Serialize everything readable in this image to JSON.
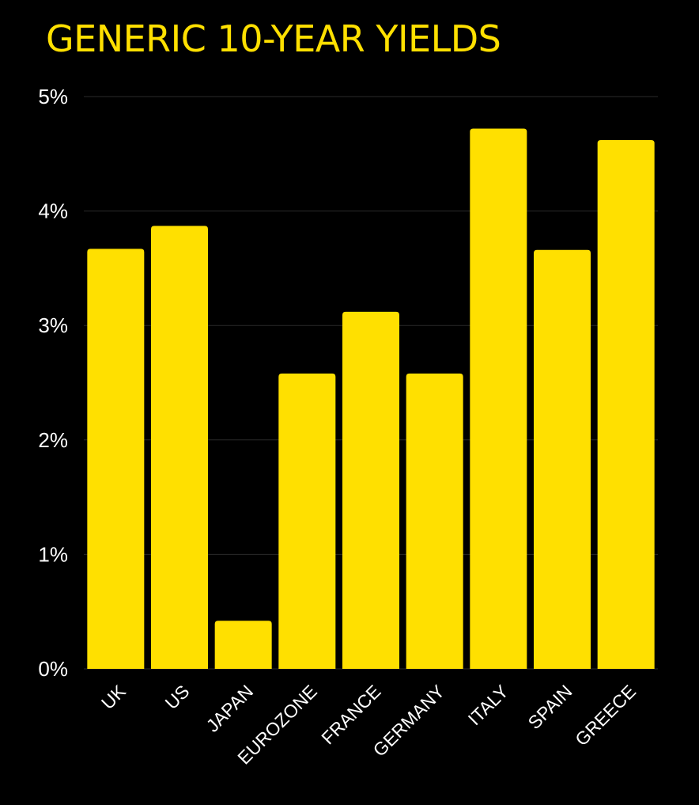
{
  "chart_data": {
    "type": "bar",
    "title": "GENERIC 10-YEAR YIELDS",
    "categories": [
      "UK",
      "US",
      "JAPAN",
      "EUROZONE",
      "FRANCE",
      "GERMANY",
      "ITALY",
      "SPAIN",
      "GREECE"
    ],
    "values": [
      3.67,
      3.87,
      0.42,
      2.58,
      3.12,
      2.58,
      4.72,
      3.66,
      4.62
    ],
    "ylim": [
      0,
      5
    ],
    "yticks": [
      0,
      1,
      2,
      3,
      4,
      5
    ],
    "ytick_labels": [
      "0%",
      "1%",
      "2%",
      "3%",
      "4%",
      "5%"
    ],
    "xlabel": "",
    "ylabel": "",
    "grid": true,
    "colors": {
      "background": "#000000",
      "bar": "#FFE000",
      "title": "#FFE000",
      "text": "#FFFFFF",
      "grid": "#2a2a2a"
    }
  }
}
